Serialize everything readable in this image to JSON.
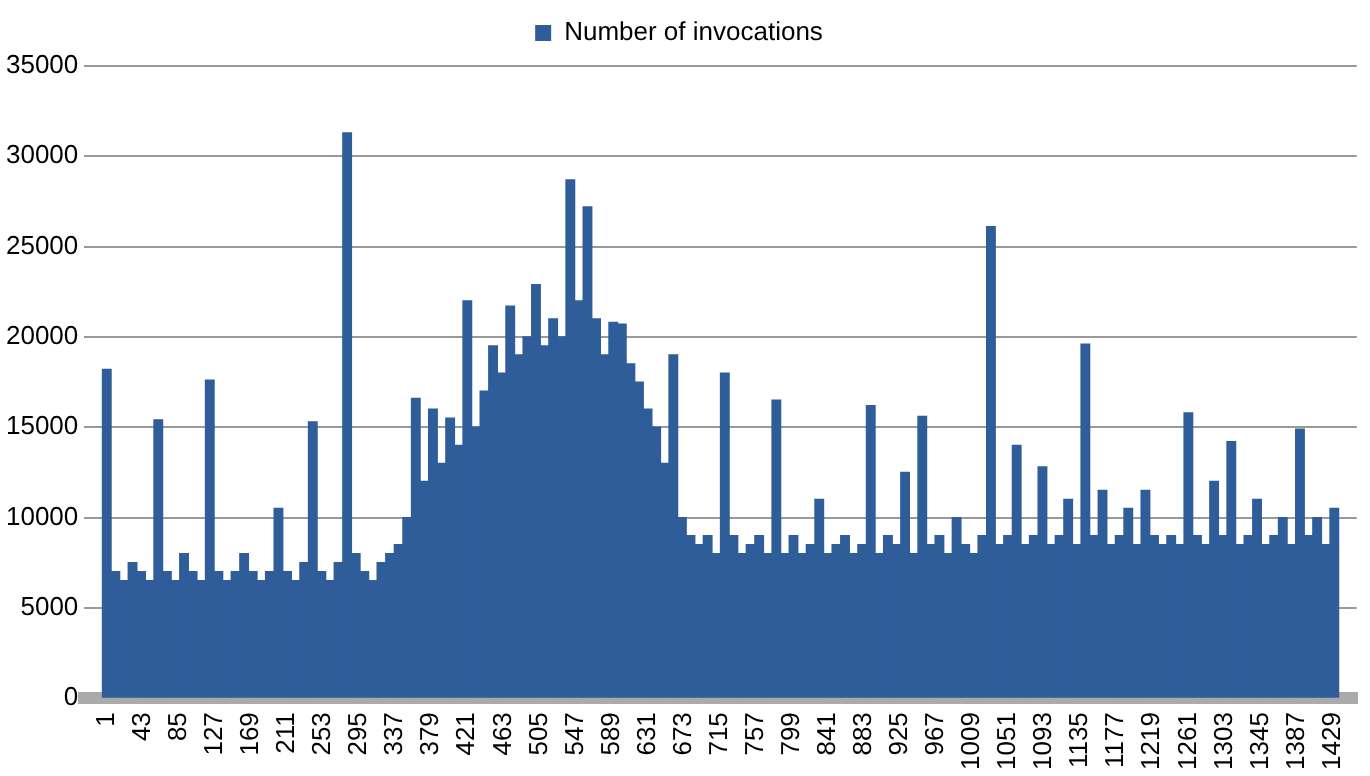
{
  "chart_data": {
    "type": "bar",
    "legend": "top",
    "grid": "y",
    "x": [
      1,
      11,
      21,
      31,
      41,
      51,
      61,
      71,
      81,
      91,
      101,
      111,
      121,
      131,
      141,
      151,
      161,
      171,
      181,
      191,
      201,
      211,
      221,
      231,
      241,
      251,
      261,
      271,
      281,
      291,
      301,
      311,
      321,
      331,
      341,
      351,
      361,
      371,
      381,
      391,
      401,
      411,
      421,
      431,
      441,
      451,
      461,
      471,
      481,
      491,
      501,
      511,
      521,
      531,
      541,
      551,
      561,
      571,
      581,
      591,
      601,
      611,
      621,
      631,
      641,
      651,
      661,
      671,
      681,
      691,
      701,
      711,
      721,
      731,
      741,
      751,
      761,
      771,
      781,
      791,
      801,
      811,
      821,
      831,
      841,
      851,
      861,
      871,
      881,
      891,
      901,
      911,
      921,
      931,
      941,
      951,
      961,
      971,
      981,
      991,
      1001,
      1011,
      1021,
      1031,
      1041,
      1051,
      1061,
      1071,
      1081,
      1091,
      1101,
      1111,
      1121,
      1131,
      1141,
      1151,
      1161,
      1171,
      1181,
      1191,
      1201,
      1211,
      1221,
      1231,
      1241,
      1251,
      1261,
      1271,
      1281,
      1291,
      1301,
      1311,
      1321,
      1331,
      1341,
      1351,
      1361,
      1371,
      1381,
      1391,
      1401,
      1411,
      1421,
      1431
    ],
    "series": [
      {
        "name": "Number of invocations",
        "color": "#2e5d9a",
        "values": [
          18200,
          7000,
          6500,
          7500,
          7000,
          6500,
          15400,
          7000,
          6500,
          8000,
          7000,
          6500,
          17600,
          7000,
          6500,
          7000,
          8000,
          7000,
          6500,
          7000,
          10500,
          7000,
          6500,
          7500,
          15300,
          7000,
          6500,
          7500,
          31300,
          8000,
          7000,
          6500,
          7500,
          8000,
          8500,
          10000,
          16600,
          12000,
          16000,
          13000,
          15500,
          14000,
          22000,
          15000,
          17000,
          19500,
          18000,
          21700,
          19000,
          20000,
          22900,
          19500,
          21000,
          20000,
          28700,
          22000,
          27200,
          21000,
          19000,
          20800,
          20700,
          18500,
          17500,
          16000,
          15000,
          13000,
          19000,
          10000,
          9000,
          8500,
          9000,
          8000,
          18000,
          9000,
          8000,
          8500,
          9000,
          8000,
          16500,
          8000,
          9000,
          8000,
          8500,
          11000,
          8000,
          8500,
          9000,
          8000,
          8500,
          16200,
          8000,
          9000,
          8500,
          12500,
          8000,
          15600,
          8500,
          9000,
          8000,
          10000,
          8500,
          8000,
          9000,
          26100,
          8500,
          9000,
          14000,
          8500,
          9000,
          12800,
          8500,
          9000,
          11000,
          8500,
          19600,
          9000,
          11500,
          8500,
          9000,
          10500,
          8500,
          11500,
          9000,
          8500,
          9000,
          8500,
          15800,
          9000,
          8500,
          12000,
          9000,
          14200,
          8500,
          9000,
          11000,
          8500,
          9000,
          10000,
          8500,
          14900,
          9000,
          10000,
          8500,
          10500
        ]
      }
    ],
    "xlim": [
      -4,
      1436
    ],
    "xticks": [
      1,
      43,
      85,
      127,
      169,
      211,
      253,
      295,
      337,
      379,
      421,
      463,
      505,
      547,
      589,
      631,
      673,
      715,
      757,
      799,
      841,
      883,
      925,
      967,
      1009,
      1051,
      1093,
      1135,
      1177,
      1219,
      1261,
      1303,
      1345,
      1387,
      1429
    ],
    "ylim": [
      0,
      35000
    ],
    "yticks": [
      0,
      5000,
      10000,
      15000,
      20000,
      25000,
      30000,
      35000
    ]
  }
}
